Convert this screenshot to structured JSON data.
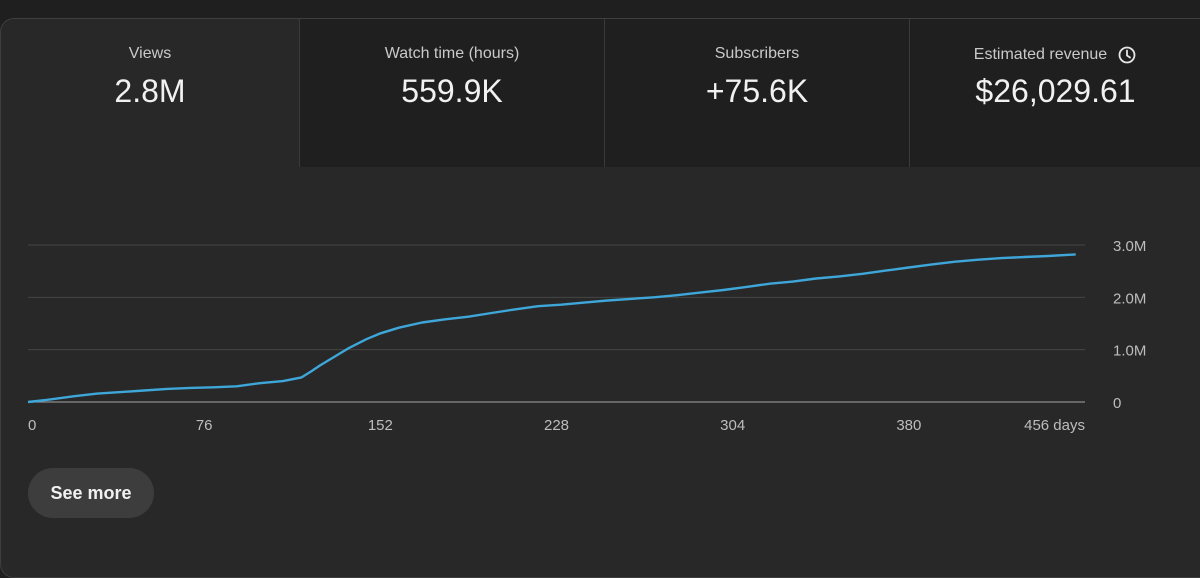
{
  "metrics": [
    {
      "label": "Views",
      "value": "2.8M",
      "active": true
    },
    {
      "label": "Watch time (hours)",
      "value": "559.9K",
      "active": false
    },
    {
      "label": "Subscribers",
      "value": "+75.6K",
      "active": false
    },
    {
      "label": "Estimated revenue",
      "value": "$26,029.61",
      "active": false,
      "icon": "clock-icon"
    }
  ],
  "chart_data": {
    "type": "line",
    "x_tick_labels": [
      "0",
      "76",
      "152",
      "228",
      "304",
      "380",
      "456 days"
    ],
    "y_tick_labels": [
      "3.0M",
      "2.0M",
      "1.0M",
      "0"
    ],
    "xlim": [
      0,
      456
    ],
    "ylim": [
      0,
      3000000
    ],
    "grid": true,
    "color": "#3ea6d8",
    "x": [
      0,
      8,
      20,
      30,
      40,
      50,
      60,
      70,
      80,
      90,
      100,
      110,
      118,
      122,
      126,
      132,
      138,
      146,
      152,
      160,
      170,
      180,
      190,
      200,
      210,
      220,
      230,
      240,
      250,
      260,
      270,
      280,
      290,
      300,
      310,
      320,
      330,
      340,
      350,
      360,
      370,
      380,
      390,
      400,
      410,
      420,
      430,
      440,
      452
    ],
    "y": [
      0,
      40000,
      110000,
      160000,
      190000,
      220000,
      250000,
      270000,
      280000,
      300000,
      360000,
      400000,
      470000,
      580000,
      700000,
      860000,
      1020000,
      1200000,
      1310000,
      1420000,
      1520000,
      1580000,
      1630000,
      1700000,
      1770000,
      1830000,
      1860000,
      1900000,
      1940000,
      1970000,
      2000000,
      2040000,
      2090000,
      2140000,
      2200000,
      2260000,
      2300000,
      2360000,
      2400000,
      2450000,
      2510000,
      2570000,
      2630000,
      2680000,
      2720000,
      2750000,
      2770000,
      2790000,
      2820000
    ]
  },
  "actions": {
    "see_more_label": "See more"
  }
}
